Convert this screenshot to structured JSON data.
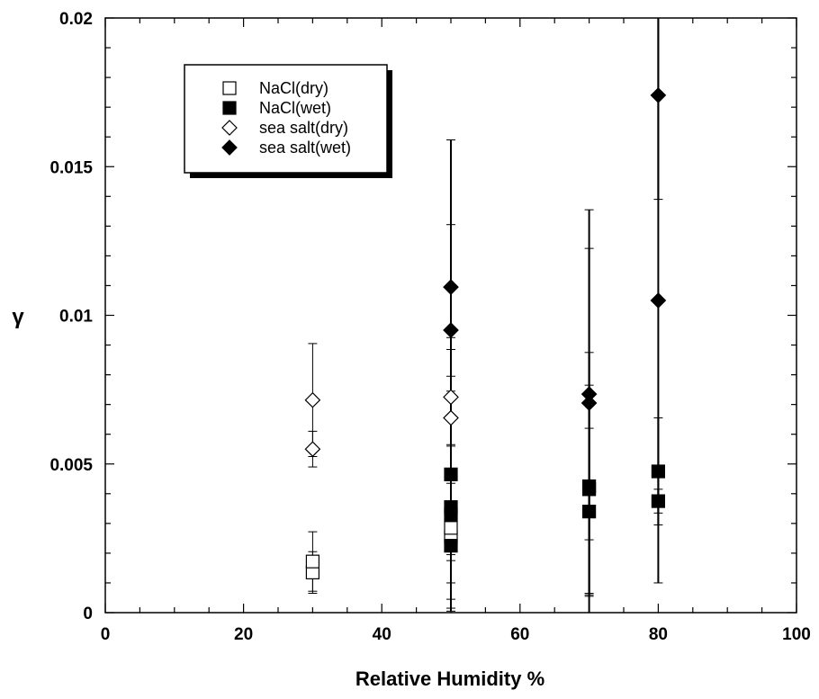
{
  "chart_data": {
    "type": "scatter",
    "title": "",
    "xlabel": "Relative Humidity %",
    "ylabel": "γ",
    "xlim": [
      0,
      100
    ],
    "ylim": [
      0,
      0.02
    ],
    "x_ticks": [
      "0",
      "20",
      "40",
      "60",
      "80",
      "100"
    ],
    "y_ticks": [
      "0",
      "0.005",
      "0.01",
      "0.015",
      "0.02"
    ],
    "grid": false,
    "legend_position": "top-left",
    "series": [
      {
        "name": "NaCl(dry)",
        "marker": "open-square",
        "points": [
          {
            "x": 30,
            "y": 0.00135,
            "err": 0.0007
          },
          {
            "x": 30,
            "y": 0.00172,
            "err": 0.001
          },
          {
            "x": 50,
            "y": 0.00255,
            "err": 0.0008
          },
          {
            "x": 50,
            "y": 0.00285,
            "err": 0.0009
          }
        ]
      },
      {
        "name": "NaCl(wet)",
        "marker": "filled-square",
        "points": [
          {
            "x": 50,
            "y": 0.00225,
            "err": 0.0021
          },
          {
            "x": 50,
            "y": 0.0033,
            "err": 0.0023
          },
          {
            "x": 50,
            "y": 0.00355,
            "err": 0.0031
          },
          {
            "x": 50,
            "y": 0.00465,
            "err": 0.0046
          },
          {
            "x": 70,
            "y": 0.0034,
            "err": 0.0028
          },
          {
            "x": 70,
            "y": 0.00415,
            "err": 0.0035
          },
          {
            "x": 70,
            "y": 0.00425,
            "err": 0.0045
          },
          {
            "x": 80,
            "y": 0.00375,
            "err": 0.0004
          },
          {
            "x": 80,
            "y": 0.00475,
            "err": 0.0018
          }
        ]
      },
      {
        "name": "sea salt(dry)",
        "marker": "open-diamond",
        "points": [
          {
            "x": 30,
            "y": 0.0055,
            "err": 0.0006
          },
          {
            "x": 30,
            "y": 0.00715,
            "err": 0.0019
          },
          {
            "x": 50,
            "y": 0.00655,
            "err": 0.0009
          },
          {
            "x": 50,
            "y": 0.00725,
            "err": 0.0007
          }
        ]
      },
      {
        "name": "sea salt(wet)",
        "marker": "filled-diamond",
        "points": [
          {
            "x": 50,
            "y": 0.0095,
            "err": 0.0064
          },
          {
            "x": 50,
            "y": 0.01095,
            "err": 0.0021
          },
          {
            "x": 70,
            "y": 0.00705,
            "err": 0.0065
          },
          {
            "x": 70,
            "y": 0.00735,
            "err": 0.0049
          },
          {
            "x": 80,
            "y": 0.0105,
            "err": 0.0095
          },
          {
            "x": 80,
            "y": 0.0174,
            "err": 0.0035
          }
        ]
      }
    ]
  }
}
